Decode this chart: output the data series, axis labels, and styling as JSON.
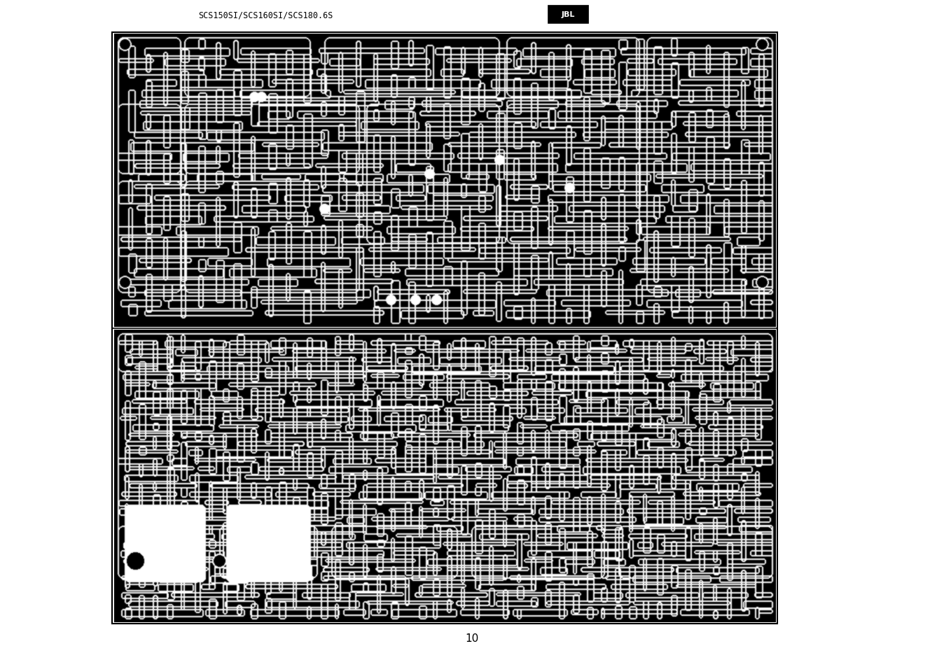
{
  "page_bg": "#ffffff",
  "header_text": "SCS150SI/SCS160SI/SCS180.6S",
  "jbl_text": "JBL",
  "page_number": "10",
  "fig_w": 13.48,
  "fig_h": 9.54,
  "dpi": 100,
  "header_fontsize": 8.5,
  "page_num_fontsize": 11,
  "jbl_fontsize": 8
}
